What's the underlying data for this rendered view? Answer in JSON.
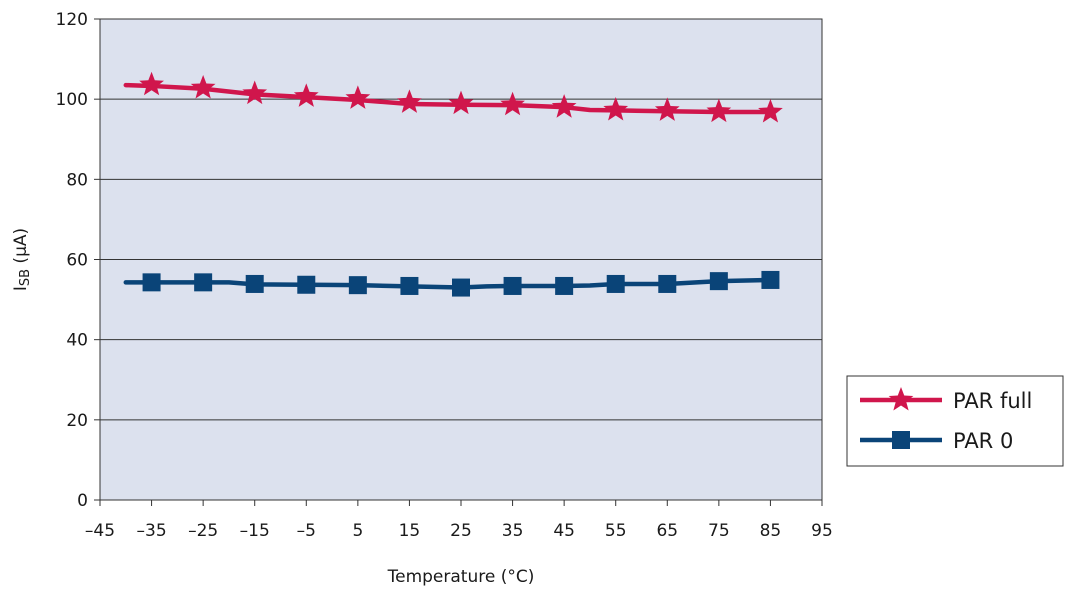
{
  "chart_data": {
    "type": "line",
    "xlabel": "Temperature (°C)",
    "ylabel": "ISB (µA)",
    "ylabel_main": "I",
    "ylabel_sub": "SB",
    "ylabel_unit": " (µA)",
    "xlim": [
      -45,
      95
    ],
    "ylim": [
      0,
      120
    ],
    "x_ticks": [
      -45,
      -35,
      -25,
      -15,
      -5,
      5,
      15,
      25,
      35,
      45,
      55,
      65,
      75,
      85,
      95
    ],
    "x_tick_labels": [
      "–45",
      "–35",
      "–25",
      "–15",
      "–5",
      "5",
      "15",
      "25",
      "35",
      "45",
      "55",
      "65",
      "75",
      "85",
      "95"
    ],
    "y_ticks": [
      0,
      20,
      40,
      60,
      80,
      100,
      120
    ],
    "y_tick_labels": [
      "0",
      "20",
      "40",
      "60",
      "80",
      "100",
      "120"
    ],
    "grid": "horizontal",
    "legend_position": "right",
    "plot_background": "#dce1ee",
    "series": [
      {
        "name": "PAR full",
        "marker": "star",
        "color": "#d0164c",
        "line_x": [
          -40,
          -35,
          -25,
          -15,
          -5,
          5,
          15,
          25,
          35,
          45,
          50,
          55,
          65,
          75,
          85
        ],
        "line_y": [
          103.5,
          103.3,
          102.6,
          101.2,
          100.5,
          99.8,
          98.8,
          98.6,
          98.5,
          98.0,
          97.3,
          97.2,
          97.0,
          96.8,
          96.8
        ],
        "x": [
          -35,
          -25,
          -15,
          -5,
          5,
          15,
          25,
          35,
          45,
          55,
          65,
          75,
          85
        ],
        "values": [
          103.6,
          102.8,
          101.4,
          100.7,
          100.2,
          99.2,
          98.9,
          98.6,
          98.0,
          97.3,
          97.2,
          96.9,
          96.8
        ]
      },
      {
        "name": "PAR 0",
        "marker": "square",
        "color": "#0a4478",
        "line_x": [
          -40,
          -35,
          -25,
          -20,
          -15,
          -5,
          5,
          15,
          25,
          30,
          35,
          45,
          50,
          55,
          65,
          75,
          85
        ],
        "line_y": [
          54.3,
          54.3,
          54.3,
          54.3,
          53.8,
          53.7,
          53.6,
          53.3,
          53.0,
          53.3,
          53.4,
          53.4,
          53.5,
          53.9,
          53.9,
          54.6,
          54.9
        ],
        "x": [
          -35,
          -25,
          -15,
          -5,
          5,
          15,
          25,
          35,
          45,
          55,
          65,
          75,
          85
        ],
        "values": [
          54.3,
          54.3,
          53.9,
          53.7,
          53.6,
          53.4,
          53.0,
          53.4,
          53.4,
          53.9,
          53.9,
          54.6,
          54.9
        ]
      }
    ]
  }
}
